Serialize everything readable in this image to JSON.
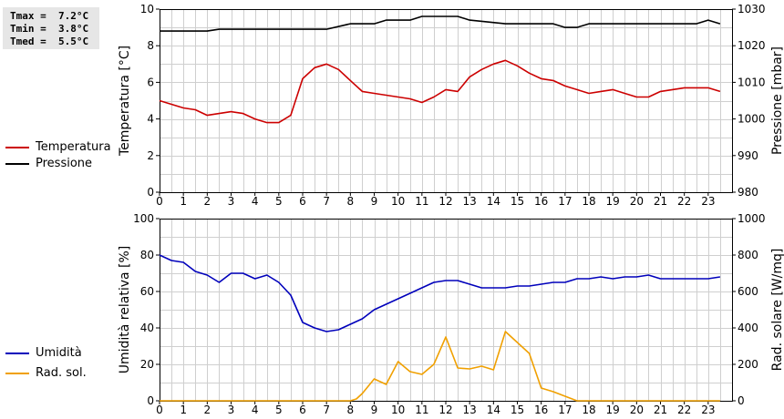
{
  "stats": {
    "tmax": "Tmax =  7.2°C",
    "tmin": "Tmin =  3.8°C",
    "tmed": "Tmed =  5.5°C"
  },
  "legend": {
    "temperatura": "Temperatura",
    "pressione": "Pressione",
    "umidita": "Umidità",
    "rad_sol": "Rad. sol."
  },
  "colors": {
    "temperatura": "#cc0000",
    "pressione": "#000000",
    "umidita": "#0000bb",
    "rad_sol": "#f0a000",
    "grid": "#cfcfcf"
  },
  "chart_data": [
    {
      "type": "line",
      "x_ticks": [
        0,
        1,
        2,
        3,
        4,
        5,
        6,
        7,
        8,
        9,
        10,
        11,
        12,
        13,
        14,
        15,
        16,
        17,
        18,
        19,
        20,
        21,
        22,
        23
      ],
      "xlim": [
        0,
        24
      ],
      "grid": true,
      "ylabel_left": "Temperatura [°C]",
      "ylabel_right": "Pressione [mbar]",
      "ylim_left": [
        0,
        10
      ],
      "yticks_left": [
        0,
        2,
        4,
        6,
        8,
        10
      ],
      "ylim_right": [
        980,
        1030
      ],
      "yticks_right": [
        980,
        990,
        1000,
        1010,
        1020,
        1030
      ],
      "series": [
        {
          "name": "Temperatura",
          "axis": "left",
          "x": [
            0,
            0.5,
            1,
            1.5,
            2,
            2.5,
            3,
            3.5,
            4,
            4.5,
            5,
            5.5,
            6,
            6.5,
            7,
            7.5,
            8,
            8.5,
            9,
            9.5,
            10,
            10.5,
            11,
            11.5,
            12,
            12.5,
            13,
            13.5,
            14,
            14.5,
            15,
            15.5,
            16,
            16.5,
            17,
            17.5,
            18,
            18.5,
            19,
            19.5,
            20,
            20.5,
            21,
            21.5,
            22,
            22.5,
            23,
            23.5
          ],
          "values": [
            5.0,
            4.8,
            4.6,
            4.5,
            4.2,
            4.3,
            4.4,
            4.3,
            4.0,
            3.8,
            3.8,
            4.2,
            6.2,
            6.8,
            7.0,
            6.7,
            6.1,
            5.5,
            5.4,
            5.3,
            5.2,
            5.1,
            4.9,
            5.2,
            5.6,
            5.5,
            6.3,
            6.7,
            7.0,
            7.2,
            6.9,
            6.5,
            6.2,
            6.1,
            5.8,
            5.6,
            5.4,
            5.5,
            5.6,
            5.4,
            5.2,
            5.2,
            5.5,
            5.6,
            5.7,
            5.7,
            5.7,
            5.5
          ]
        },
        {
          "name": "Pressione",
          "axis": "right",
          "x": [
            0,
            2,
            2.5,
            7,
            8,
            9,
            9.5,
            10,
            10.5,
            11,
            12.5,
            13,
            14.5,
            16.5,
            17,
            17.5,
            18,
            22.5,
            23,
            23.5
          ],
          "values": [
            1024.0,
            1024.0,
            1024.5,
            1024.5,
            1026.0,
            1026.0,
            1027.0,
            1027.0,
            1027.0,
            1028.0,
            1028.0,
            1027.0,
            1026.0,
            1026.0,
            1025.0,
            1025.0,
            1026.0,
            1026.0,
            1027.0,
            1026.0
          ]
        }
      ]
    },
    {
      "type": "line",
      "x_ticks": [
        0,
        1,
        2,
        3,
        4,
        5,
        6,
        7,
        8,
        9,
        10,
        11,
        12,
        13,
        14,
        15,
        16,
        17,
        18,
        19,
        20,
        21,
        22,
        23
      ],
      "xlim": [
        0,
        24
      ],
      "grid": true,
      "ylabel_left": "Umidità relativa [%]",
      "ylabel_right": "Rad. solare [W/mq]",
      "ylim_left": [
        0,
        100
      ],
      "yticks_left": [
        0,
        20,
        40,
        60,
        80,
        100
      ],
      "ylim_right": [
        0,
        1000
      ],
      "yticks_right": [
        0,
        200,
        400,
        600,
        800,
        1000
      ],
      "series": [
        {
          "name": "Umidità",
          "axis": "left",
          "x": [
            0,
            0.5,
            1,
            1.5,
            2,
            2.5,
            3,
            3.5,
            4,
            4.5,
            5,
            5.5,
            6,
            6.5,
            7,
            7.5,
            8,
            8.5,
            9,
            9.5,
            10,
            10.5,
            11,
            11.5,
            12,
            12.5,
            13,
            13.5,
            14,
            14.5,
            15,
            15.5,
            16,
            16.5,
            17,
            17.5,
            18,
            18.5,
            19,
            19.5,
            20,
            20.5,
            21,
            21.5,
            22,
            22.5,
            23,
            23.5
          ],
          "values": [
            80,
            77,
            76,
            71,
            69,
            65,
            70,
            70,
            67,
            69,
            65,
            58,
            43,
            40,
            38,
            39,
            42,
            45,
            50,
            53,
            56,
            59,
            62,
            65,
            66,
            66,
            64,
            62,
            62,
            62,
            63,
            63,
            64,
            65,
            65,
            67,
            67,
            68,
            67,
            68,
            68,
            69,
            67,
            67,
            67,
            67,
            67,
            68
          ]
        },
        {
          "name": "Rad. sol.",
          "axis": "right",
          "x": [
            0,
            1,
            2,
            3,
            4,
            5,
            6,
            7,
            8,
            8.25,
            8.5,
            9,
            9.5,
            10,
            10.5,
            11,
            11.5,
            12,
            12.5,
            13,
            13.5,
            14,
            14.5,
            15,
            15.5,
            16,
            16.5,
            17,
            17.5,
            18,
            19,
            20,
            21,
            22,
            23,
            23.5
          ],
          "values": [
            0,
            0,
            0,
            0,
            0,
            0,
            0,
            0,
            0,
            10,
            40,
            120,
            90,
            215,
            160,
            145,
            200,
            350,
            180,
            175,
            190,
            170,
            380,
            320,
            260,
            70,
            50,
            25,
            0,
            0,
            0,
            0,
            0,
            0,
            0,
            0
          ]
        }
      ]
    }
  ]
}
